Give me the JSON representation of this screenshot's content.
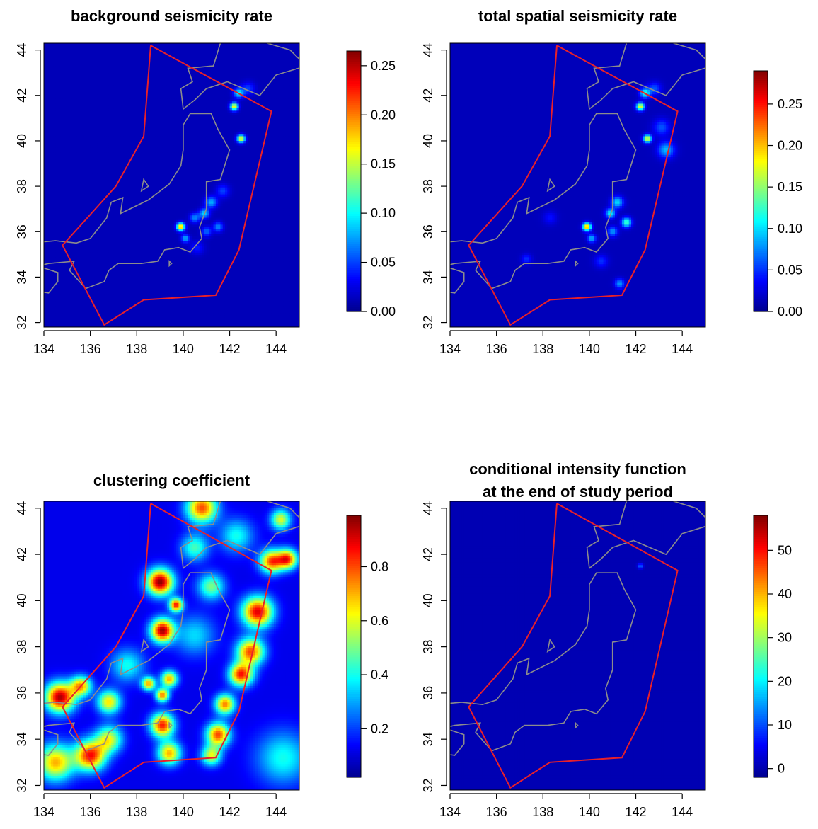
{
  "chart_data": [
    {
      "type": "heatmap",
      "title": "background seismicity rate",
      "xlabel": "",
      "ylabel": "",
      "xlim": [
        134,
        145
      ],
      "ylim": [
        31.8,
        44.3
      ],
      "xticks": [
        134,
        136,
        138,
        140,
        142,
        144
      ],
      "yticks": [
        32,
        34,
        36,
        38,
        40,
        42,
        44
      ],
      "colorbar": {
        "min": 0,
        "max": 0.265,
        "ticks": [
          "0.00",
          "0.05",
          "0.10",
          "0.15",
          "0.20",
          "0.25"
        ],
        "values": [
          0,
          0.05,
          0.1,
          0.15,
          0.2,
          0.25
        ]
      },
      "background_level": 0.012,
      "hotspots": [
        {
          "lon": 139.9,
          "lat": 36.2,
          "value": 0.2,
          "sigma": 0.12
        },
        {
          "lon": 142.2,
          "lat": 41.5,
          "value": 0.17,
          "sigma": 0.12
        },
        {
          "lon": 142.5,
          "lat": 40.1,
          "value": 0.17,
          "sigma": 0.12
        },
        {
          "lon": 142.4,
          "lat": 42.1,
          "value": 0.1,
          "sigma": 0.15
        },
        {
          "lon": 141.2,
          "lat": 37.3,
          "value": 0.08,
          "sigma": 0.18
        },
        {
          "lon": 140.9,
          "lat": 36.8,
          "value": 0.09,
          "sigma": 0.15
        },
        {
          "lon": 140.5,
          "lat": 36.6,
          "value": 0.07,
          "sigma": 0.15
        },
        {
          "lon": 141.5,
          "lat": 36.2,
          "value": 0.07,
          "sigma": 0.15
        },
        {
          "lon": 140.1,
          "lat": 35.7,
          "value": 0.08,
          "sigma": 0.12
        },
        {
          "lon": 141.0,
          "lat": 36.0,
          "value": 0.06,
          "sigma": 0.15
        },
        {
          "lon": 141.7,
          "lat": 37.8,
          "value": 0.05,
          "sigma": 0.2
        },
        {
          "lon": 142.8,
          "lat": 42.3,
          "value": 0.05,
          "sigma": 0.2
        },
        {
          "lon": 140.6,
          "lat": 35.3,
          "value": 0.04,
          "sigma": 0.2
        }
      ],
      "study_region": [
        [
          138.6,
          44.2
        ],
        [
          143.8,
          41.3
        ],
        [
          142.4,
          35.2
        ],
        [
          141.4,
          33.2
        ],
        [
          138.3,
          33.0
        ],
        [
          136.6,
          31.9
        ],
        [
          134.8,
          35.4
        ],
        [
          137.1,
          38.0
        ],
        [
          138.3,
          40.2
        ],
        [
          138.6,
          44.2
        ]
      ]
    },
    {
      "type": "heatmap",
      "title": "total spatial seismicity rate",
      "xlabel": "",
      "ylabel": "",
      "xlim": [
        134,
        145
      ],
      "ylim": [
        31.8,
        44.3
      ],
      "xticks": [
        134,
        136,
        138,
        140,
        142,
        144
      ],
      "yticks": [
        32,
        34,
        36,
        38,
        40,
        42,
        44
      ],
      "colorbar": {
        "min": 0,
        "max": 0.29,
        "ticks": [
          "0.00",
          "0.05",
          "0.10",
          "0.15",
          "0.20",
          "0.25"
        ],
        "values": [
          0,
          0.05,
          0.1,
          0.15,
          0.2,
          0.25
        ]
      },
      "background_level": 0.014,
      "hotspots": [
        {
          "lon": 139.9,
          "lat": 36.2,
          "value": 0.22,
          "sigma": 0.12
        },
        {
          "lon": 142.2,
          "lat": 41.5,
          "value": 0.18,
          "sigma": 0.12
        },
        {
          "lon": 142.5,
          "lat": 40.1,
          "value": 0.18,
          "sigma": 0.12
        },
        {
          "lon": 142.4,
          "lat": 42.1,
          "value": 0.12,
          "sigma": 0.15
        },
        {
          "lon": 141.2,
          "lat": 37.3,
          "value": 0.1,
          "sigma": 0.18
        },
        {
          "lon": 140.9,
          "lat": 36.8,
          "value": 0.11,
          "sigma": 0.15
        },
        {
          "lon": 141.6,
          "lat": 36.4,
          "value": 0.13,
          "sigma": 0.15
        },
        {
          "lon": 141.0,
          "lat": 36.0,
          "value": 0.08,
          "sigma": 0.15
        },
        {
          "lon": 140.1,
          "lat": 35.7,
          "value": 0.09,
          "sigma": 0.12
        },
        {
          "lon": 143.3,
          "lat": 39.6,
          "value": 0.09,
          "sigma": 0.25
        },
        {
          "lon": 143.1,
          "lat": 40.6,
          "value": 0.06,
          "sigma": 0.25
        },
        {
          "lon": 142.8,
          "lat": 42.3,
          "value": 0.06,
          "sigma": 0.2
        },
        {
          "lon": 141.3,
          "lat": 33.7,
          "value": 0.08,
          "sigma": 0.15
        },
        {
          "lon": 140.5,
          "lat": 34.7,
          "value": 0.05,
          "sigma": 0.2
        },
        {
          "lon": 137.3,
          "lat": 34.8,
          "value": 0.05,
          "sigma": 0.15
        },
        {
          "lon": 138.3,
          "lat": 36.6,
          "value": 0.04,
          "sigma": 0.2
        }
      ],
      "study_region": [
        [
          138.6,
          44.2
        ],
        [
          143.8,
          41.3
        ],
        [
          142.4,
          35.2
        ],
        [
          141.4,
          33.2
        ],
        [
          138.3,
          33.0
        ],
        [
          136.6,
          31.9
        ],
        [
          134.8,
          35.4
        ],
        [
          137.1,
          38.0
        ],
        [
          138.3,
          40.2
        ],
        [
          138.6,
          44.2
        ]
      ]
    },
    {
      "type": "heatmap",
      "title": "clustering coefficient",
      "xlabel": "",
      "ylabel": "",
      "xlim": [
        134,
        145
      ],
      "ylim": [
        31.8,
        44.3
      ],
      "xticks": [
        134,
        136,
        138,
        140,
        142,
        144
      ],
      "yticks": [
        32,
        34,
        36,
        38,
        40,
        42,
        44
      ],
      "colorbar": {
        "min": 0.02,
        "max": 0.99,
        "ticks": [
          "0.2",
          "0.4",
          "0.6",
          "0.8"
        ],
        "values": [
          0.2,
          0.4,
          0.6,
          0.8
        ]
      },
      "background_level": 0.12,
      "hotspots": [
        {
          "lon": 134.7,
          "lat": 35.8,
          "value": 0.95,
          "sigma": 0.45
        },
        {
          "lon": 134.5,
          "lat": 33.0,
          "value": 0.7,
          "sigma": 0.55
        },
        {
          "lon": 136.0,
          "lat": 33.3,
          "value": 0.85,
          "sigma": 0.45
        },
        {
          "lon": 136.8,
          "lat": 34.0,
          "value": 0.6,
          "sigma": 0.4
        },
        {
          "lon": 139.0,
          "lat": 40.8,
          "value": 0.98,
          "sigma": 0.4
        },
        {
          "lon": 139.1,
          "lat": 38.7,
          "value": 0.95,
          "sigma": 0.35
        },
        {
          "lon": 140.8,
          "lat": 44.0,
          "value": 0.8,
          "sigma": 0.45
        },
        {
          "lon": 143.2,
          "lat": 39.5,
          "value": 0.9,
          "sigma": 0.45
        },
        {
          "lon": 143.8,
          "lat": 41.7,
          "value": 0.8,
          "sigma": 0.35
        },
        {
          "lon": 144.5,
          "lat": 41.8,
          "value": 0.8,
          "sigma": 0.3
        },
        {
          "lon": 142.9,
          "lat": 37.8,
          "value": 0.8,
          "sigma": 0.4
        },
        {
          "lon": 142.5,
          "lat": 36.8,
          "value": 0.85,
          "sigma": 0.35
        },
        {
          "lon": 141.8,
          "lat": 35.5,
          "value": 0.75,
          "sigma": 0.3
        },
        {
          "lon": 141.5,
          "lat": 34.2,
          "value": 0.8,
          "sigma": 0.35
        },
        {
          "lon": 141.2,
          "lat": 33.3,
          "value": 0.6,
          "sigma": 0.3
        },
        {
          "lon": 139.1,
          "lat": 34.6,
          "value": 0.85,
          "sigma": 0.35
        },
        {
          "lon": 139.4,
          "lat": 33.4,
          "value": 0.7,
          "sigma": 0.35
        },
        {
          "lon": 139.4,
          "lat": 36.6,
          "value": 0.7,
          "sigma": 0.25
        },
        {
          "lon": 138.5,
          "lat": 36.4,
          "value": 0.7,
          "sigma": 0.2
        },
        {
          "lon": 139.1,
          "lat": 35.9,
          "value": 0.75,
          "sigma": 0.2
        },
        {
          "lon": 139.7,
          "lat": 39.8,
          "value": 0.85,
          "sigma": 0.2
        },
        {
          "lon": 136.8,
          "lat": 35.6,
          "value": 0.65,
          "sigma": 0.35
        },
        {
          "lon": 135.6,
          "lat": 36.3,
          "value": 0.7,
          "sigma": 0.3
        },
        {
          "lon": 140.5,
          "lat": 42.3,
          "value": 0.45,
          "sigma": 0.4
        },
        {
          "lon": 141.2,
          "lat": 40.6,
          "value": 0.5,
          "sigma": 0.4
        },
        {
          "lon": 140.5,
          "lat": 38.5,
          "value": 0.35,
          "sigma": 0.6
        },
        {
          "lon": 137.6,
          "lat": 37.2,
          "value": 0.4,
          "sigma": 0.5
        },
        {
          "lon": 144.3,
          "lat": 33.2,
          "value": 0.4,
          "sigma": 0.8
        },
        {
          "lon": 144.2,
          "lat": 43.5,
          "value": 0.6,
          "sigma": 0.3
        },
        {
          "lon": 142.3,
          "lat": 42.8,
          "value": 0.4,
          "sigma": 0.5
        }
      ],
      "study_region": [
        [
          138.6,
          44.2
        ],
        [
          143.8,
          41.3
        ],
        [
          142.4,
          35.2
        ],
        [
          141.4,
          33.2
        ],
        [
          138.3,
          33.0
        ],
        [
          136.6,
          31.9
        ],
        [
          134.8,
          35.4
        ],
        [
          137.1,
          38.0
        ],
        [
          138.3,
          40.2
        ],
        [
          138.6,
          44.2
        ]
      ]
    },
    {
      "type": "heatmap",
      "title": "conditional intensity function\nat the end of study period",
      "title_lines": [
        "conditional intensity function",
        "at the end of study period"
      ],
      "xlabel": "",
      "ylabel": "",
      "xlim": [
        134,
        145
      ],
      "ylim": [
        31.8,
        44.3
      ],
      "xticks": [
        134,
        136,
        138,
        140,
        142,
        144
      ],
      "yticks": [
        32,
        34,
        36,
        38,
        40,
        42,
        44
      ],
      "colorbar": {
        "min": -2,
        "max": 58,
        "ticks": [
          "0",
          "10",
          "20",
          "30",
          "40",
          "50"
        ],
        "values": [
          0,
          10,
          20,
          30,
          40,
          50
        ]
      },
      "background_level": 0.4,
      "hotspots": [
        {
          "lon": 142.2,
          "lat": 41.5,
          "value": 12,
          "sigma": 0.08
        }
      ],
      "study_region": [
        [
          138.6,
          44.2
        ],
        [
          143.8,
          41.3
        ],
        [
          142.4,
          35.2
        ],
        [
          141.4,
          33.2
        ],
        [
          138.3,
          33.0
        ],
        [
          136.6,
          31.9
        ],
        [
          134.8,
          35.4
        ],
        [
          137.1,
          38.0
        ],
        [
          138.3,
          40.2
        ],
        [
          138.6,
          44.2
        ]
      ]
    }
  ],
  "colors": {
    "study_region": "#e8202a",
    "coastline": "#8c8c8c",
    "colormap": [
      "#00008f",
      "#0000ff",
      "#0080ff",
      "#00ffff",
      "#80ff80",
      "#ffff00",
      "#ff8000",
      "#ff0000",
      "#800000"
    ]
  }
}
